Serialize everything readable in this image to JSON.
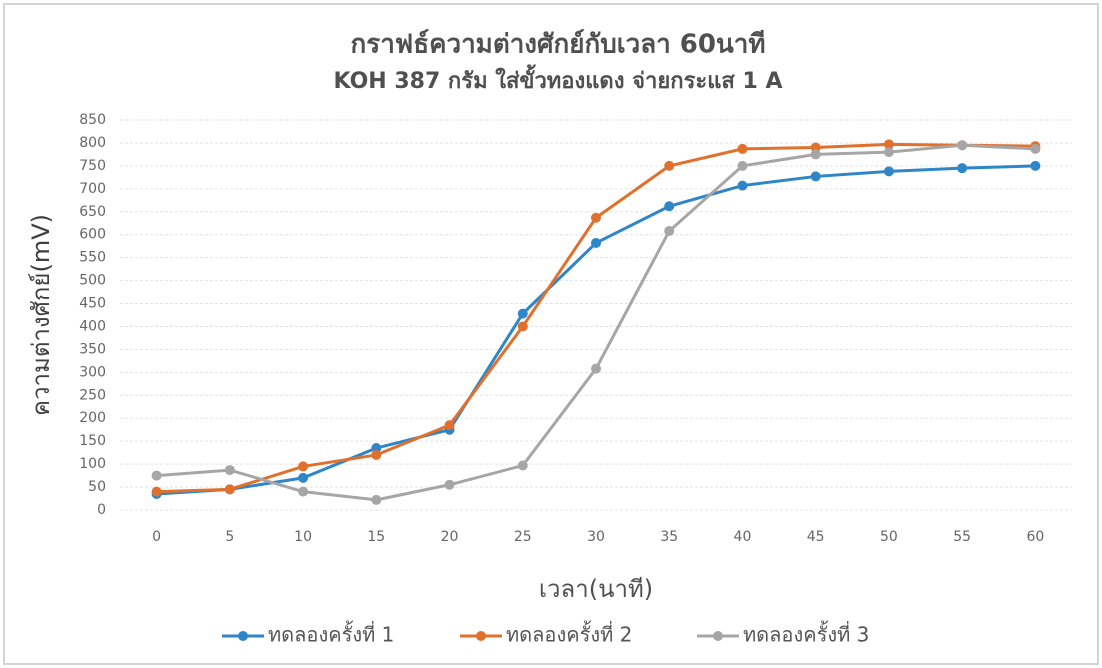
{
  "chart_data": {
    "type": "line",
    "title": "กราฟธ์ความต่างศักย์กับเวลา 60นาที",
    "subtitle": "KOH 387 กรัม ใส่ขั้วทองแดง จ่ายกระแส 1 A",
    "x_label": "เวลา(นาที)",
    "y_label": "ความต่างศักย์(mV)",
    "categories": [
      "0",
      "5",
      "10",
      "15",
      "20",
      "25",
      "30",
      "35",
      "40",
      "45",
      "50",
      "55",
      "60"
    ],
    "series": [
      {
        "name": "ทดลองครั้งที่ 1",
        "color": "#2e86c9",
        "values": [
          35,
          45,
          70,
          135,
          175,
          428,
          582,
          662,
          707,
          727,
          738,
          745,
          750
        ]
      },
      {
        "name": "ทดลองครั้งที่ 2",
        "color": "#e0712d",
        "values": [
          40,
          45,
          95,
          120,
          185,
          400,
          637,
          750,
          787,
          790,
          797,
          795,
          793
        ]
      },
      {
        "name": "ทดลองครั้งที่ 3",
        "color": "#a6a6a6",
        "values": [
          75,
          87,
          40,
          22,
          55,
          97,
          308,
          608,
          750,
          775,
          780,
          795,
          787
        ]
      }
    ],
    "ylim": [
      0,
      850
    ],
    "yticks": [
      0,
      50,
      100,
      150,
      200,
      250,
      300,
      350,
      400,
      450,
      500,
      550,
      600,
      650,
      700,
      750,
      800,
      850
    ],
    "grid": true,
    "legend": "bottom"
  }
}
